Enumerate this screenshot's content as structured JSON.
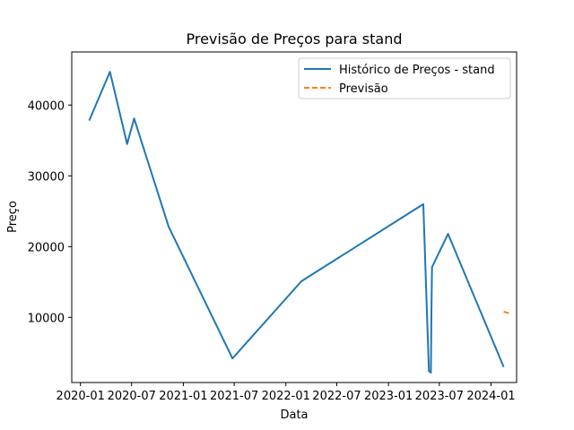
{
  "chart_data": {
    "type": "line",
    "title": "Previsão de Preços para stand",
    "xlabel": "Data",
    "ylabel": "Preço",
    "x_axis": "date",
    "xlim": [
      "2019-12-01",
      "2024-04-01"
    ],
    "ylim": [
      800,
      47500
    ],
    "x_ticks": [
      {
        "date": "2020-01-01",
        "label": "2020-01"
      },
      {
        "date": "2020-07-01",
        "label": "2020-07"
      },
      {
        "date": "2021-01-01",
        "label": "2021-01"
      },
      {
        "date": "2021-07-01",
        "label": "2021-07"
      },
      {
        "date": "2022-01-01",
        "label": "2022-01"
      },
      {
        "date": "2022-07-01",
        "label": "2022-07"
      },
      {
        "date": "2023-01-01",
        "label": "2023-01"
      },
      {
        "date": "2023-07-01",
        "label": "2023-07"
      },
      {
        "date": "2024-01-01",
        "label": "2024-01"
      }
    ],
    "y_ticks": [
      {
        "value": 10000,
        "label": "10000"
      },
      {
        "value": 20000,
        "label": "20000"
      },
      {
        "value": 30000,
        "label": "30000"
      },
      {
        "value": 40000,
        "label": "40000"
      }
    ],
    "grid": false,
    "legend_position": "top-right",
    "series": [
      {
        "name": "Histórico de Preços - stand",
        "color": "#1f77b4",
        "style": "solid",
        "points": [
          {
            "x": "2020-02-01",
            "y": 37800
          },
          {
            "x": "2020-04-15",
            "y": 44700
          },
          {
            "x": "2020-06-15",
            "y": 34500
          },
          {
            "x": "2020-07-10",
            "y": 38100
          },
          {
            "x": "2020-11-10",
            "y": 22800
          },
          {
            "x": "2021-06-25",
            "y": 4200
          },
          {
            "x": "2022-02-25",
            "y": 15100
          },
          {
            "x": "2023-05-05",
            "y": 26000
          },
          {
            "x": "2023-05-25",
            "y": 2400
          },
          {
            "x": "2023-06-01",
            "y": 2200
          },
          {
            "x": "2023-06-03",
            "y": 11000
          },
          {
            "x": "2023-06-05",
            "y": 17100
          },
          {
            "x": "2023-08-01",
            "y": 21800
          },
          {
            "x": "2024-02-15",
            "y": 3000
          }
        ]
      },
      {
        "name": "Previsão",
        "color": "#ff7f0e",
        "style": "dashed",
        "points": [
          {
            "x": "2024-02-15",
            "y": 10800
          },
          {
            "x": "2024-03-05",
            "y": 10600
          }
        ]
      }
    ]
  }
}
